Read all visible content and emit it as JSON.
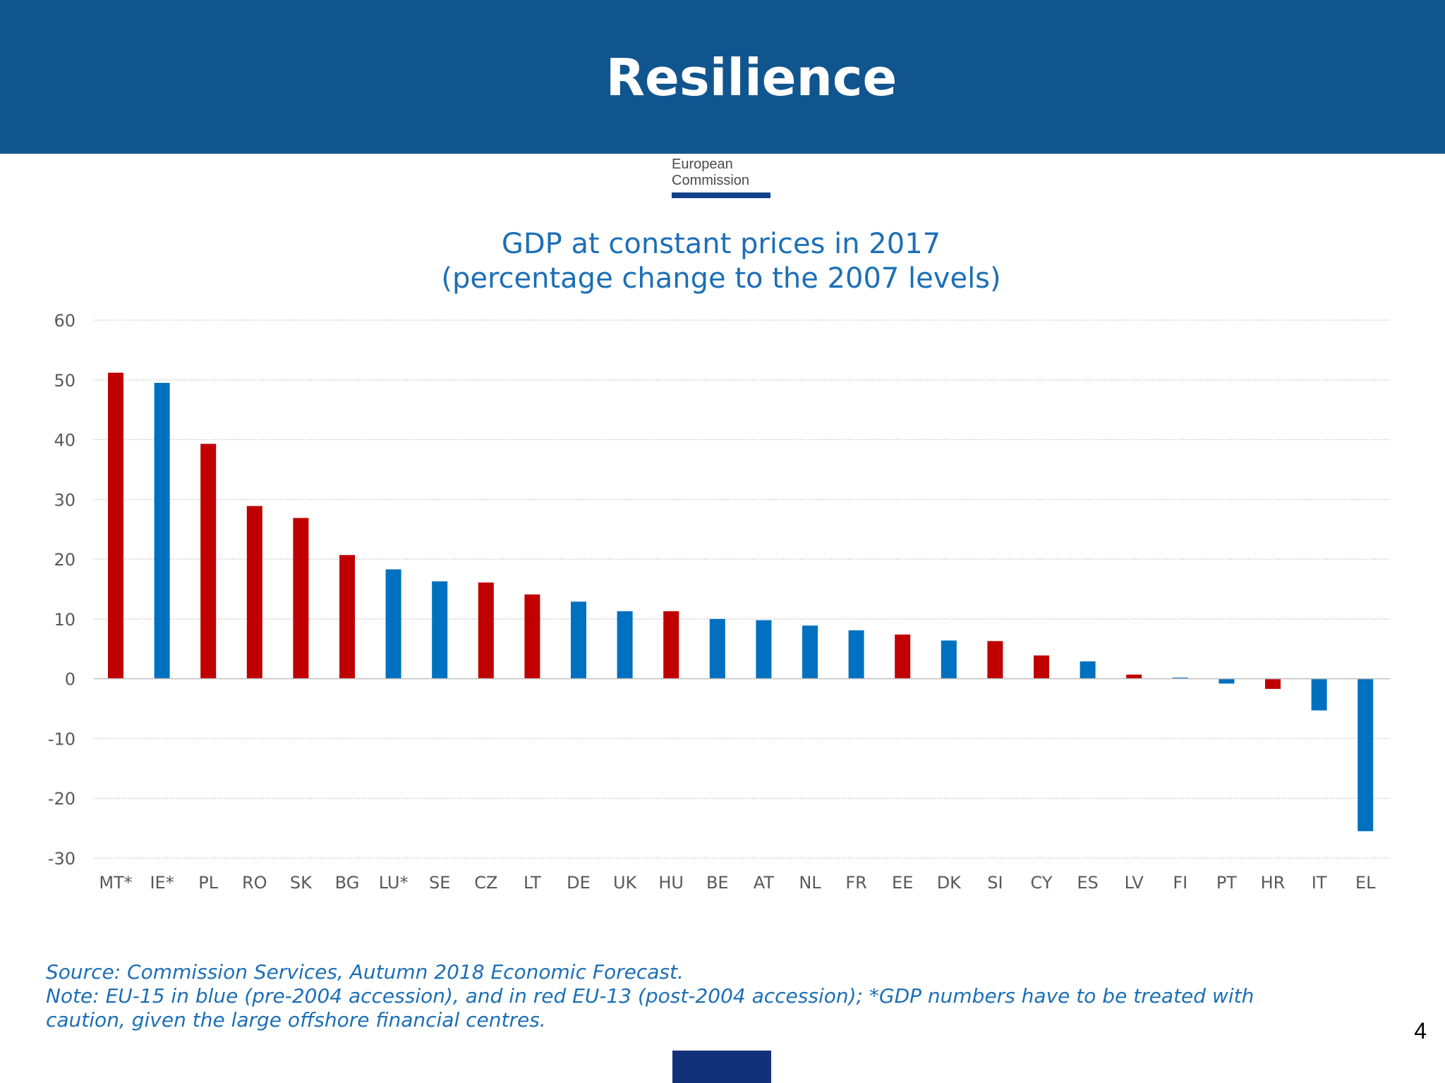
{
  "header": {
    "title": "Resilience"
  },
  "logo": {
    "line1": "European",
    "line2": "Commission"
  },
  "chart_data": {
    "type": "bar",
    "title": "GDP at constant prices in 2017",
    "subtitle": "(percentage change to the 2007 levels)",
    "xlabel": "",
    "ylabel": "",
    "ylim": [
      -30,
      60
    ],
    "yticks": [
      60,
      50,
      40,
      30,
      20,
      10,
      0,
      -10,
      -20,
      -30
    ],
    "grid": true,
    "categories": [
      "MT*",
      "IE*",
      "PL",
      "RO",
      "SK",
      "BG",
      "LU*",
      "SE",
      "CZ",
      "LT",
      "DE",
      "UK",
      "HU",
      "BE",
      "AT",
      "NL",
      "FR",
      "EE",
      "DK",
      "SI",
      "CY",
      "ES",
      "LV",
      "FI",
      "PT",
      "HR",
      "IT",
      "EL"
    ],
    "values": [
      51.2,
      49.5,
      39.3,
      28.9,
      26.9,
      20.7,
      18.3,
      16.3,
      16.1,
      14.1,
      12.9,
      11.3,
      11.3,
      10.0,
      9.8,
      8.9,
      8.1,
      7.4,
      6.4,
      6.3,
      3.9,
      2.9,
      0.7,
      0.2,
      -0.8,
      -1.7,
      -5.3,
      -25.5
    ],
    "groups": [
      "EU-13",
      "EU-15",
      "EU-13",
      "EU-13",
      "EU-13",
      "EU-13",
      "EU-15",
      "EU-15",
      "EU-13",
      "EU-13",
      "EU-15",
      "EU-15",
      "EU-13",
      "EU-15",
      "EU-15",
      "EU-15",
      "EU-15",
      "EU-13",
      "EU-15",
      "EU-13",
      "EU-13",
      "EU-15",
      "EU-13",
      "EU-15",
      "EU-15",
      "EU-13",
      "EU-15",
      "EU-15"
    ],
    "colors": {
      "EU-15": "#0070c0",
      "EU-13": "#c00000"
    }
  },
  "footnote": {
    "source": "Source: Commission Services, Autumn 2018 Economic Forecast.",
    "note_line1": "Note: EU-15 in blue (pre-2004 accession), and in red EU-13 (post-2004 accession); *GDP numbers have to be treated with",
    "note_line2": "caution, given the large offshore financial centres."
  },
  "page_number": "4"
}
